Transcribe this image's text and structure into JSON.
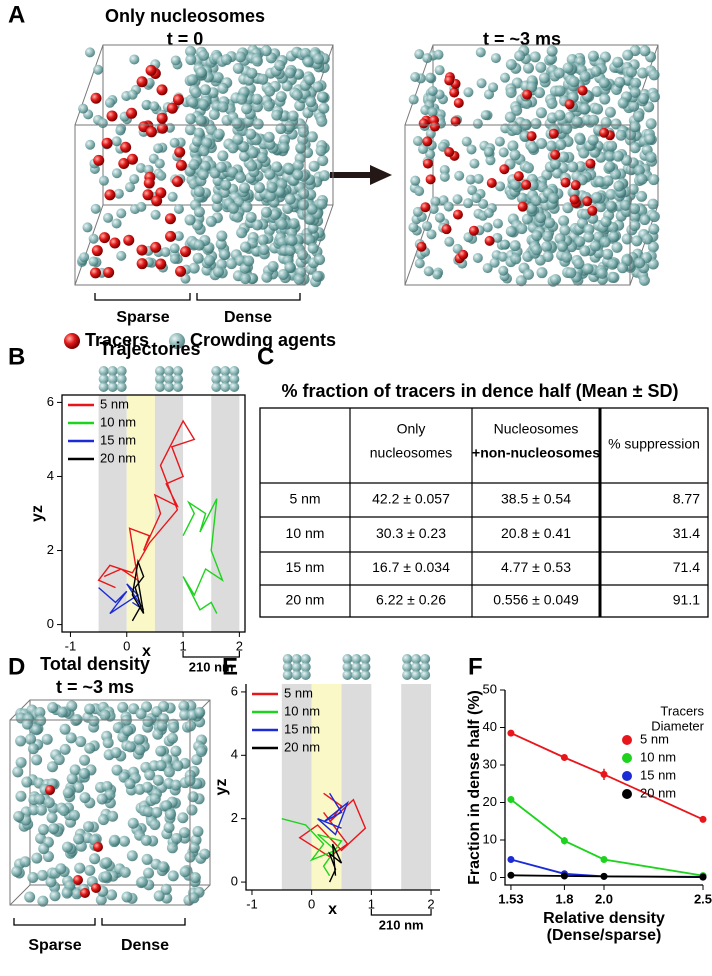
{
  "panel_labels": [
    "A",
    "B",
    "C",
    "D",
    "E",
    "F"
  ],
  "panel_a": {
    "title": "Only nucleosomes",
    "left_time": "t = 0",
    "right_time": "t = ~3 ms",
    "sparse": "Sparse",
    "dense": "Dense",
    "legend": [
      "Tracers",
      "Crowding agents"
    ]
  },
  "panel_c": {
    "title": "% fraction of tracers in dence half (Mean ± SD)",
    "columns": [
      [
        "Only",
        "nucleosomes"
      ],
      [
        "Nucleosomes",
        "+non-nucleosomes"
      ],
      [
        "% suppression"
      ]
    ],
    "rows": [
      [
        "5 nm",
        "42.2 ± 0.057",
        "38.5 ± 0.54",
        "8.77"
      ],
      [
        "10 nm",
        "30.3 ± 0.23",
        "20.8 ± 0.41",
        "31.4"
      ],
      [
        "15 nm",
        "16.7 ± 0.034",
        "4.77 ± 0.53",
        "71.4"
      ],
      [
        "20 nm",
        "6.22 ± 0.26",
        "0.556 ± 0.049",
        "91.1"
      ]
    ]
  },
  "panel_d": {
    "title": "Total density",
    "time": "t = ~3 ms",
    "sparse": "Sparse",
    "dense": "Dense"
  },
  "chart_data": [
    {
      "type": "line",
      "title": "Trajectories",
      "xlabel": "x",
      "ylabel": "yz",
      "scale_bar": "210 nm",
      "xlim": [
        -1.15,
        2.1
      ],
      "ylim": [
        -0.2,
        6.2
      ],
      "xticks": [
        -1,
        0,
        1,
        2
      ],
      "yticks": [
        0,
        2,
        4,
        6
      ],
      "bands": [
        {
          "from": -0.5,
          "to": 0,
          "color": "#dcdcdc"
        },
        {
          "from": 0,
          "to": 0.5,
          "color": "#fbf8c8"
        },
        {
          "from": 0.5,
          "to": 1,
          "color": "#dcdcdc"
        },
        {
          "from": 1.5,
          "to": 2,
          "color": "#dcdcdc"
        }
      ],
      "series": [
        {
          "name": "5 nm",
          "color": "#e8161b",
          "x": [
            -0.4,
            -0.1,
            0.2,
            0.05,
            0.4,
            0.3,
            0.6,
            0.5,
            0.9,
            0.7,
            1.0,
            0.8,
            1.2,
            1.0,
            0.6,
            0.9,
            0.4,
            0.1,
            -0.3,
            -0.5,
            -0.2
          ],
          "values": [
            1.3,
            1.5,
            1.2,
            2.6,
            2.4,
            2.0,
            3.0,
            3.5,
            3.2,
            3.8,
            4.0,
            4.8,
            5.0,
            5.5,
            4.3,
            3.1,
            2.2,
            1.4,
            1.6,
            1.2,
            1.0
          ]
        },
        {
          "name": "10 nm",
          "color": "#1ed31e",
          "x": [
            1.0,
            1.2,
            1.1,
            1.4,
            1.3,
            1.6,
            1.5,
            1.7,
            1.4,
            1.2,
            1.0,
            1.3,
            1.5,
            1.6
          ],
          "values": [
            2.4,
            3.0,
            3.3,
            3.0,
            2.5,
            3.4,
            2.0,
            1.2,
            1.5,
            0.8,
            1.3,
            0.4,
            0.6,
            0.3
          ]
        },
        {
          "name": "15 nm",
          "color": "#1b2bd6",
          "x": [
            -0.5,
            -0.2,
            0.0,
            -0.3,
            -0.1,
            0.2,
            0.0,
            0.3,
            0.1
          ],
          "values": [
            1.0,
            0.6,
            0.9,
            0.3,
            0.5,
            0.8,
            1.1,
            0.4,
            0.6
          ]
        },
        {
          "name": "20 nm",
          "color": "#000000",
          "x": [
            0.1,
            0.25,
            0.15,
            0.3,
            0.2,
            0.1,
            0.3,
            0.2
          ],
          "values": [
            0.1,
            0.5,
            1.0,
            1.3,
            1.7,
            0.8,
            0.3,
            1.2
          ]
        }
      ]
    },
    {
      "type": "line",
      "xlabel": "x",
      "ylabel": "yz",
      "scale_bar": "210 nm",
      "xlim": [
        -1.1,
        2.15
      ],
      "ylim": [
        -0.25,
        6.25
      ],
      "xticks": [
        -1,
        0,
        1,
        2
      ],
      "yticks": [
        0,
        2,
        4,
        6
      ],
      "bands": [
        {
          "from": -0.5,
          "to": 0,
          "color": "#dcdcdc"
        },
        {
          "from": 0,
          "to": 0.5,
          "color": "#fbf8c8"
        },
        {
          "from": 0.5,
          "to": 1,
          "color": "#dcdcdc"
        },
        {
          "from": 1.5,
          "to": 2,
          "color": "#dcdcdc"
        }
      ],
      "series": [
        {
          "name": "5 nm",
          "color": "#e8161b",
          "x": [
            0.2,
            0.5,
            0.3,
            0.7,
            0.9,
            0.5,
            0.1,
            -0.2,
            0.3,
            0.6,
            0.2
          ],
          "values": [
            2.8,
            2.4,
            1.9,
            2.6,
            1.7,
            1.0,
            1.8,
            1.4,
            0.8,
            1.2,
            2.2
          ]
        },
        {
          "name": "10 nm",
          "color": "#1ed31e",
          "x": [
            -0.5,
            -0.1,
            0.2,
            0.0,
            0.4,
            0.1,
            0.5,
            0.2,
            0.3
          ],
          "values": [
            2.0,
            1.8,
            1.2,
            0.7,
            1.0,
            1.5,
            1.3,
            0.5,
            0.2
          ]
        },
        {
          "name": "15 nm",
          "color": "#1b2bd6",
          "x": [
            0.3,
            0.5,
            0.2,
            0.6,
            0.4,
            0.1,
            0.5
          ],
          "values": [
            2.8,
            2.2,
            1.9,
            2.5,
            1.5,
            2.0,
            1.7
          ]
        },
        {
          "name": "20 nm",
          "color": "#000000",
          "x": [
            0.3,
            0.4,
            0.3,
            0.5,
            0.35,
            0.4
          ],
          "values": [
            0.0,
            0.4,
            0.9,
            0.6,
            1.2,
            0.2
          ]
        }
      ]
    },
    {
      "type": "line",
      "markers": true,
      "xlabel": "Relative density",
      "xlabel_sub": "(Dense/sparse)",
      "ylabel": "Fraction in dense half (%)",
      "legend_title": "Tracers",
      "legend_subtitle": "Diameter",
      "x": [
        1.53,
        1.8,
        2.0,
        2.5
      ],
      "xlim": [
        1.5,
        2.5
      ],
      "ylim": [
        -2,
        50
      ],
      "xticks": [
        1.53,
        1.8,
        {
          "value": 2,
          "label": "2.0"
        },
        2.5
      ],
      "yticks": [
        0,
        10,
        20,
        30,
        40,
        50
      ],
      "series": [
        {
          "name": "5 nm",
          "color": "#e8161b",
          "values": [
            38.5,
            32,
            27.5,
            15.5
          ],
          "errors": [
            0.54,
            0.5,
            1.5,
            0.3
          ]
        },
        {
          "name": "10 nm",
          "color": "#1ed31e",
          "values": [
            20.8,
            9.8,
            4.8,
            0.5
          ],
          "errors": [
            0.41,
            1.0,
            0.6,
            0.2
          ]
        },
        {
          "name": "15 nm",
          "color": "#1b2bd6",
          "values": [
            4.8,
            1.0,
            0.3,
            0.2
          ],
          "errors": [
            0.53,
            0.3,
            0.1,
            0.1
          ]
        },
        {
          "name": "20 nm",
          "color": "#000000",
          "values": [
            0.6,
            0.4,
            0.3,
            0.1
          ],
          "errors": [
            0.05,
            0.05,
            0.05,
            0.05
          ]
        }
      ]
    }
  ]
}
